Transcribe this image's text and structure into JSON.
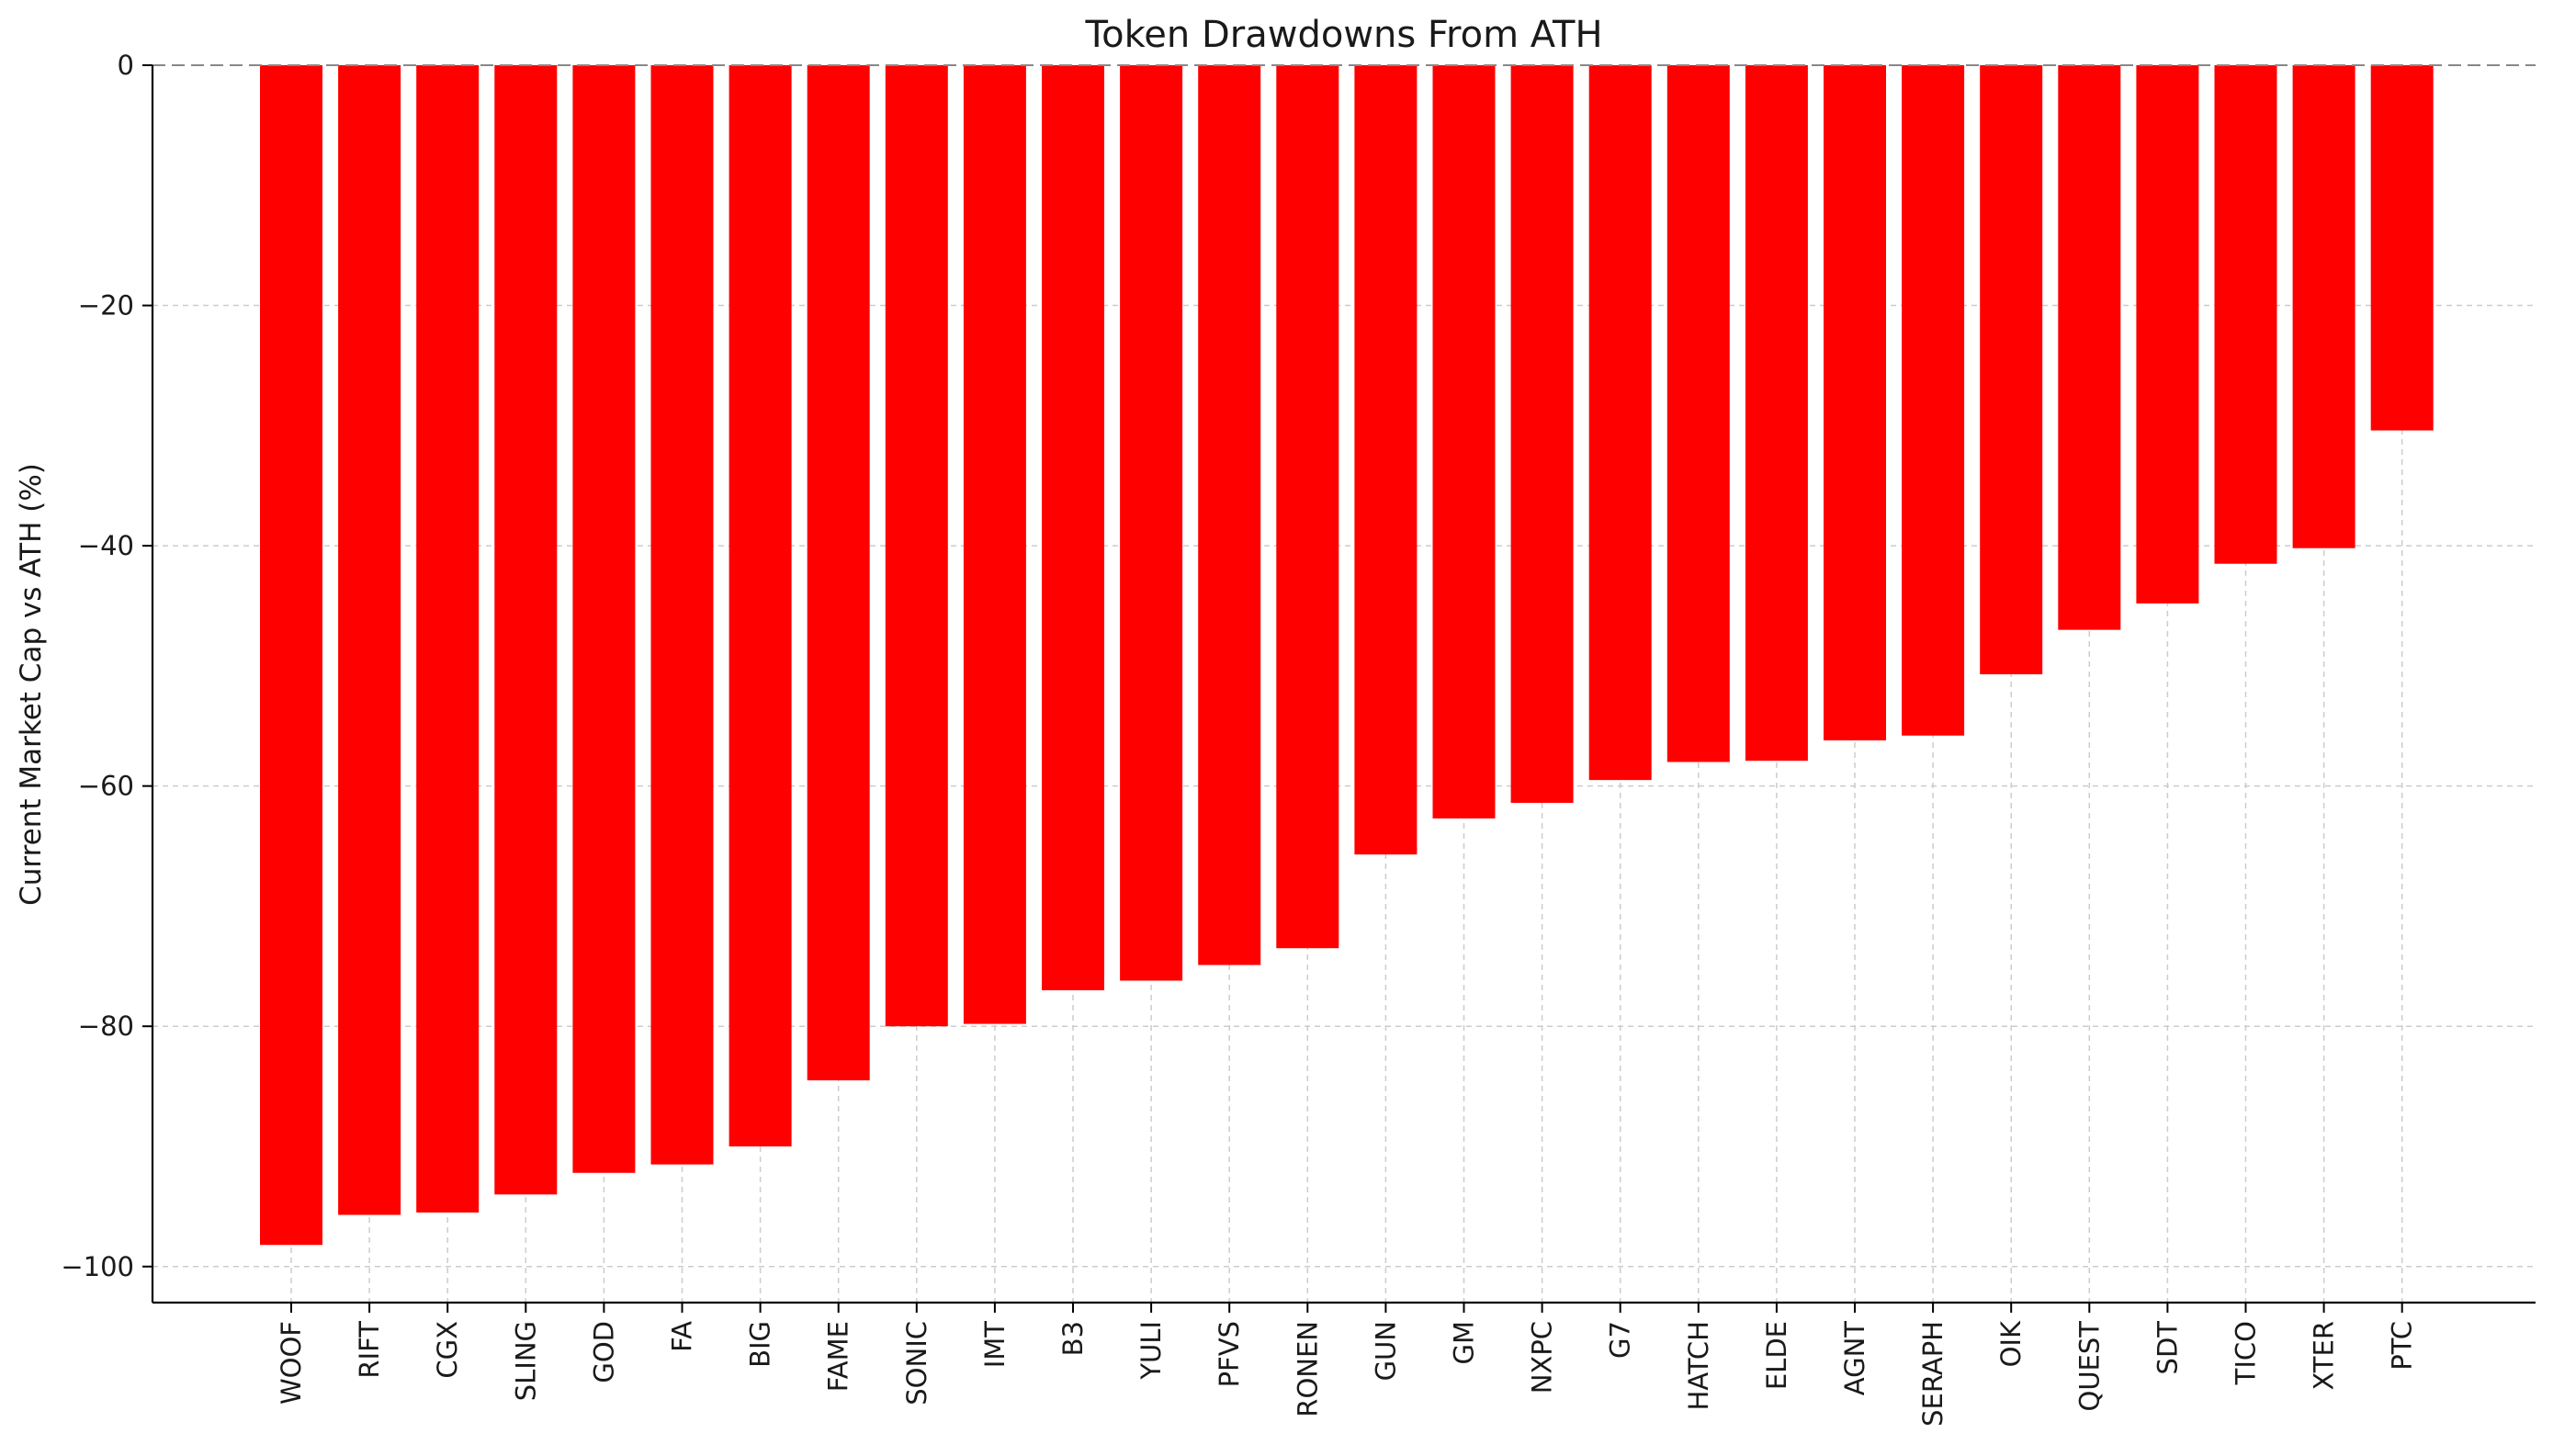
{
  "chart_data": {
    "type": "bar",
    "title": "Token Drawdowns From ATH",
    "xlabel": "",
    "ylabel": "Current Market Cap vs ATH (%)",
    "categories": [
      "WOOF",
      "RIFT",
      "CGX",
      "SLING",
      "GOD",
      "FA",
      "BIG",
      "FAME",
      "SONIC",
      "IMT",
      "B3",
      "YULI",
      "PFVS",
      "RONEN",
      "GUN",
      "GM",
      "NXPC",
      "G7",
      "HATCH",
      "ELDE",
      "AGNT",
      "SERAPH",
      "OIK",
      "QUEST",
      "SDT",
      "TICO",
      "XTER",
      "PTC"
    ],
    "values": [
      -98.2,
      -95.7,
      -95.5,
      -94.0,
      -92.2,
      -91.5,
      -90.0,
      -84.5,
      -80.0,
      -79.8,
      -77.0,
      -76.2,
      -74.9,
      -73.5,
      -65.7,
      -62.7,
      -61.4,
      -59.5,
      -58.0,
      -57.9,
      -56.2,
      -55.8,
      -50.7,
      -47.0,
      -44.8,
      -41.5,
      -40.2,
      -30.4
    ],
    "ylim": [
      -103,
      0
    ],
    "yticks": [
      0,
      -20,
      -40,
      -60,
      -80,
      -100
    ],
    "ytick_labels": [
      "0",
      "−20",
      "−40",
      "−60",
      "−80",
      "−100"
    ],
    "grid": true,
    "zero_line": "dashed",
    "bar_color": "#ff0000",
    "grid_color": "#cccccc",
    "axis_color": "#000000"
  }
}
